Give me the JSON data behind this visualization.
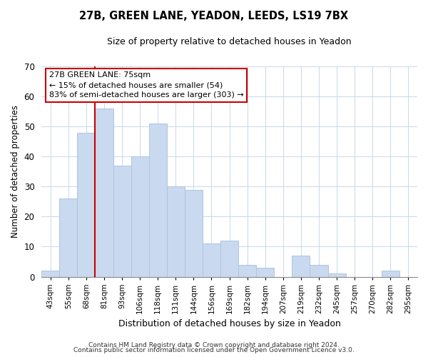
{
  "title": "27B, GREEN LANE, YEADON, LEEDS, LS19 7BX",
  "subtitle": "Size of property relative to detached houses in Yeadon",
  "xlabel": "Distribution of detached houses by size in Yeadon",
  "ylabel": "Number of detached properties",
  "bar_labels": [
    "43sqm",
    "55sqm",
    "68sqm",
    "81sqm",
    "93sqm",
    "106sqm",
    "118sqm",
    "131sqm",
    "144sqm",
    "156sqm",
    "169sqm",
    "182sqm",
    "194sqm",
    "207sqm",
    "219sqm",
    "232sqm",
    "245sqm",
    "257sqm",
    "270sqm",
    "282sqm",
    "295sqm"
  ],
  "bar_values": [
    2,
    26,
    48,
    56,
    37,
    40,
    51,
    30,
    29,
    11,
    12,
    4,
    3,
    0,
    7,
    4,
    1,
    0,
    0,
    2,
    0
  ],
  "bar_color": "#c9d9ef",
  "bar_edge_color": "#afc4e0",
  "ylim": [
    0,
    70
  ],
  "yticks": [
    0,
    10,
    20,
    30,
    40,
    50,
    60,
    70
  ],
  "vline_color": "#cc0000",
  "annotation_title": "27B GREEN LANE: 75sqm",
  "annotation_line1": "← 15% of detached houses are smaller (54)",
  "annotation_line2": "83% of semi-detached houses are larger (303) →",
  "annotation_box_color": "#ffffff",
  "annotation_box_edge": "#cc0000",
  "footer_line1": "Contains HM Land Registry data © Crown copyright and database right 2024.",
  "footer_line2": "Contains public sector information licensed under the Open Government Licence v3.0.",
  "bg_color": "#ffffff",
  "grid_color": "#c8d8ec"
}
